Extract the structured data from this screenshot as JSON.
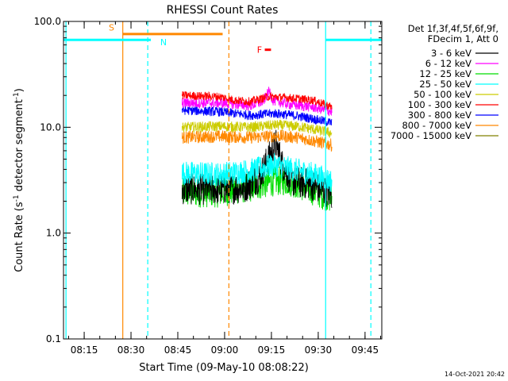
{
  "chart_data": {
    "type": "line",
    "title": "RHESSI Count Rates",
    "xlabel": "Start Time (09-May-10 08:08:22)",
    "ylabel": "Count Rate (s⁻¹ detector segment⁻¹)",
    "ylabel_parts": [
      "Count Rate (s",
      "-1",
      " detector segment",
      "-1",
      ")"
    ],
    "yscale": "log",
    "ylim": [
      0.1,
      100.0
    ],
    "yticks": [
      {
        "value": 0.1,
        "label": "0.1"
      },
      {
        "value": 1.0,
        "label": "1.0"
      },
      {
        "value": 10.0,
        "label": "10.0"
      },
      {
        "value": 100.0,
        "label": "100.0"
      }
    ],
    "x_units": "minutes after 08:08:22",
    "xlim": [
      0,
      102
    ],
    "xticks": [
      {
        "value": 6.63,
        "label": "08:15"
      },
      {
        "value": 21.63,
        "label": "08:30"
      },
      {
        "value": 36.63,
        "label": "08:45"
      },
      {
        "value": 51.63,
        "label": "09:00"
      },
      {
        "value": 66.63,
        "label": "09:15"
      },
      {
        "value": 81.63,
        "label": "09:30"
      },
      {
        "value": 96.63,
        "label": "09:45"
      }
    ],
    "data_window": [
      38.0,
      86.0
    ],
    "legend": {
      "header": [
        "Det 1f,3f,4f,5f,6f,9f,",
        "FDecim 1, Att 0"
      ],
      "placement": "top-right outside plot"
    },
    "series": [
      {
        "name": "3 - 6 keV",
        "color": "#000000",
        "base": [
          [
            38,
            2.6
          ],
          [
            50,
            2.6
          ],
          [
            58,
            2.7
          ],
          [
            63,
            3.4
          ],
          [
            66,
            5.3
          ],
          [
            68,
            7.0
          ],
          [
            70,
            4.5
          ],
          [
            73,
            3.1
          ],
          [
            79,
            2.9
          ],
          [
            86,
            2.3
          ]
        ],
        "jitter": 0.3
      },
      {
        "name": "6 - 12 keV",
        "color": "#ff00ff",
        "base": [
          [
            38,
            17.0
          ],
          [
            50,
            17.0
          ],
          [
            60,
            16.0
          ],
          [
            64,
            17.5
          ],
          [
            66,
            22.0
          ],
          [
            67,
            18.0
          ],
          [
            72,
            16.5
          ],
          [
            80,
            15.5
          ],
          [
            86,
            14.0
          ]
        ],
        "jitter": 0.1
      },
      {
        "name": "12 - 25 keV",
        "color": "#00dd00",
        "base": [
          [
            38,
            2.4
          ],
          [
            50,
            2.4
          ],
          [
            60,
            2.7
          ],
          [
            68,
            3.1
          ],
          [
            72,
            3.1
          ],
          [
            80,
            2.5
          ],
          [
            86,
            2.1
          ]
        ],
        "jitter": 0.28
      },
      {
        "name": "25 - 50 keV",
        "color": "#00ffff",
        "base": [
          [
            38,
            3.7
          ],
          [
            50,
            3.6
          ],
          [
            60,
            3.9
          ],
          [
            68,
            4.4
          ],
          [
            72,
            4.1
          ],
          [
            80,
            3.6
          ],
          [
            86,
            3.1
          ]
        ],
        "jitter": 0.23
      },
      {
        "name": "50 - 100 keV",
        "color": "#cccc00",
        "base": [
          [
            38,
            10.0
          ],
          [
            50,
            10.2
          ],
          [
            60,
            10.0
          ],
          [
            68,
            10.5
          ],
          [
            75,
            10.2
          ],
          [
            86,
            8.8
          ]
        ],
        "jitter": 0.1
      },
      {
        "name": "100 - 300 keV",
        "color": "#ff0000",
        "base": [
          [
            38,
            20.0
          ],
          [
            50,
            19.5
          ],
          [
            55,
            18.0
          ],
          [
            60,
            17.5
          ],
          [
            66,
            19.5
          ],
          [
            72,
            19.0
          ],
          [
            80,
            18.0
          ],
          [
            86,
            15.5
          ]
        ],
        "jitter": 0.08
      },
      {
        "name": "300 - 800 keV",
        "color": "#0000ff",
        "base": [
          [
            38,
            14.5
          ],
          [
            50,
            14.0
          ],
          [
            60,
            13.0
          ],
          [
            68,
            13.5
          ],
          [
            75,
            12.8
          ],
          [
            86,
            11.0
          ]
        ],
        "jitter": 0.09
      },
      {
        "name": "800 - 7000 keV",
        "color": "#ff8800",
        "base": [
          [
            38,
            8.0
          ],
          [
            50,
            8.2
          ],
          [
            60,
            8.0
          ],
          [
            68,
            8.3
          ],
          [
            75,
            8.0
          ],
          [
            86,
            6.8
          ]
        ],
        "jitter": 0.12
      },
      {
        "name": "7000 - 15000 keV",
        "color": "#808000",
        "base": [],
        "jitter": 0
      }
    ],
    "annotations": [
      {
        "id": "S",
        "label": "S",
        "color": "#ff8800",
        "x_start": 19.0,
        "x_end": 51.0,
        "x_line": 19.0,
        "y_value": 76.0,
        "label_x": 14.5,
        "label_y": 88.0
      },
      {
        "id": "N",
        "label": "N",
        "color": "#00ffff",
        "x_line": 0.8,
        "x_line_dashed": 27.0,
        "bars": [
          [
            0,
            28.0
          ],
          [
            84.0,
            102.0
          ]
        ],
        "y_value": 67.0,
        "label_x": 31.0,
        "label_y": 64.0
      },
      {
        "id": "F",
        "label": "F",
        "color": "#ff0000",
        "x_start": 64.5,
        "x_end": 66.5,
        "y_value": 54.0,
        "label_x": 62.0,
        "label_y": 54.0
      }
    ],
    "vertical_lines": [
      {
        "x": 19.0,
        "color": "#ff8800",
        "style": "solid"
      },
      {
        "x": 53.0,
        "color": "#ff8800",
        "style": "dashed"
      },
      {
        "x": 0.8,
        "color": "#00ffff",
        "style": "solid"
      },
      {
        "x": 27.0,
        "color": "#00ffff",
        "style": "dashed"
      },
      {
        "x": 84.0,
        "color": "#00ffff",
        "style": "solid"
      },
      {
        "x": 98.5,
        "color": "#00ffff",
        "style": "dashed"
      }
    ],
    "footer_timestamp": "14-Oct-2021 20:42"
  }
}
